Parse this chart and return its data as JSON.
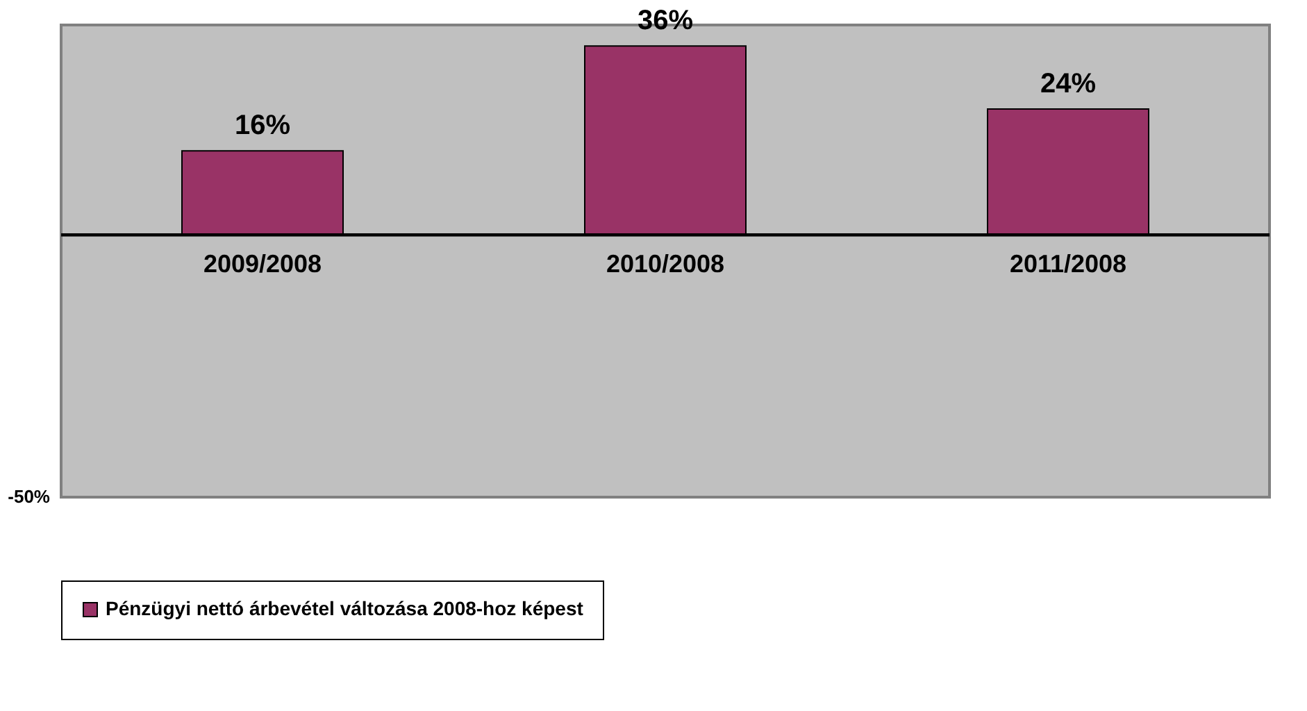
{
  "chart_data": {
    "type": "bar",
    "categories": [
      "2009/2008",
      "2010/2008",
      "2011/2008"
    ],
    "series": [
      {
        "name": "Pénzügyi nettó árbevétel változása 2008-hoz képest",
        "color": "#993366",
        "values": [
          16,
          36,
          24
        ],
        "value_labels": [
          "16%",
          "36%",
          "24%"
        ]
      }
    ],
    "ylim": [
      -50,
      40
    ],
    "annotations": [
      "-50%"
    ],
    "legend": "bottom"
  }
}
